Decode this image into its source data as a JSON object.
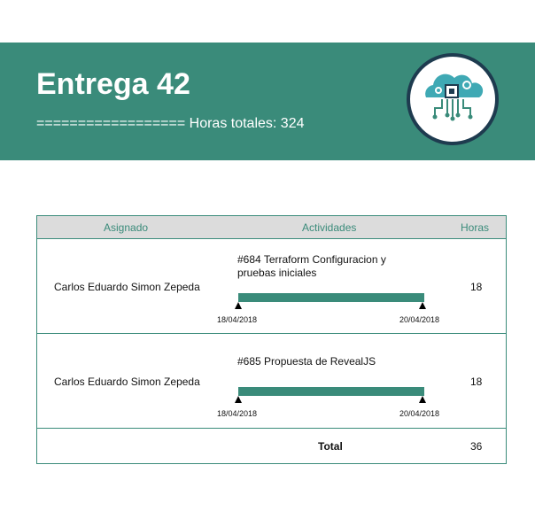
{
  "header": {
    "title": "Entrega 42",
    "subtitle": "================== Horas totales: 324",
    "logo_icon": "cloud-chip-icon",
    "accent_color": "#3a8b7a"
  },
  "table": {
    "columns": {
      "assigned": "Asignado",
      "activities": "Actividades",
      "hours": "Horas"
    },
    "rows": [
      {
        "assigned": "Carlos Eduardo Simon Zepeda",
        "activity": "#684 Terraform Configuracion y pruebas iniciales",
        "start_date": "18/04/2018",
        "end_date": "20/04/2018",
        "hours": "18"
      },
      {
        "assigned": "Carlos Eduardo Simon Zepeda",
        "activity": "#685 Propuesta de RevealJS",
        "start_date": "18/04/2018",
        "end_date": "20/04/2018",
        "hours": "18"
      }
    ],
    "total_label": "Total",
    "total_value": "36"
  }
}
